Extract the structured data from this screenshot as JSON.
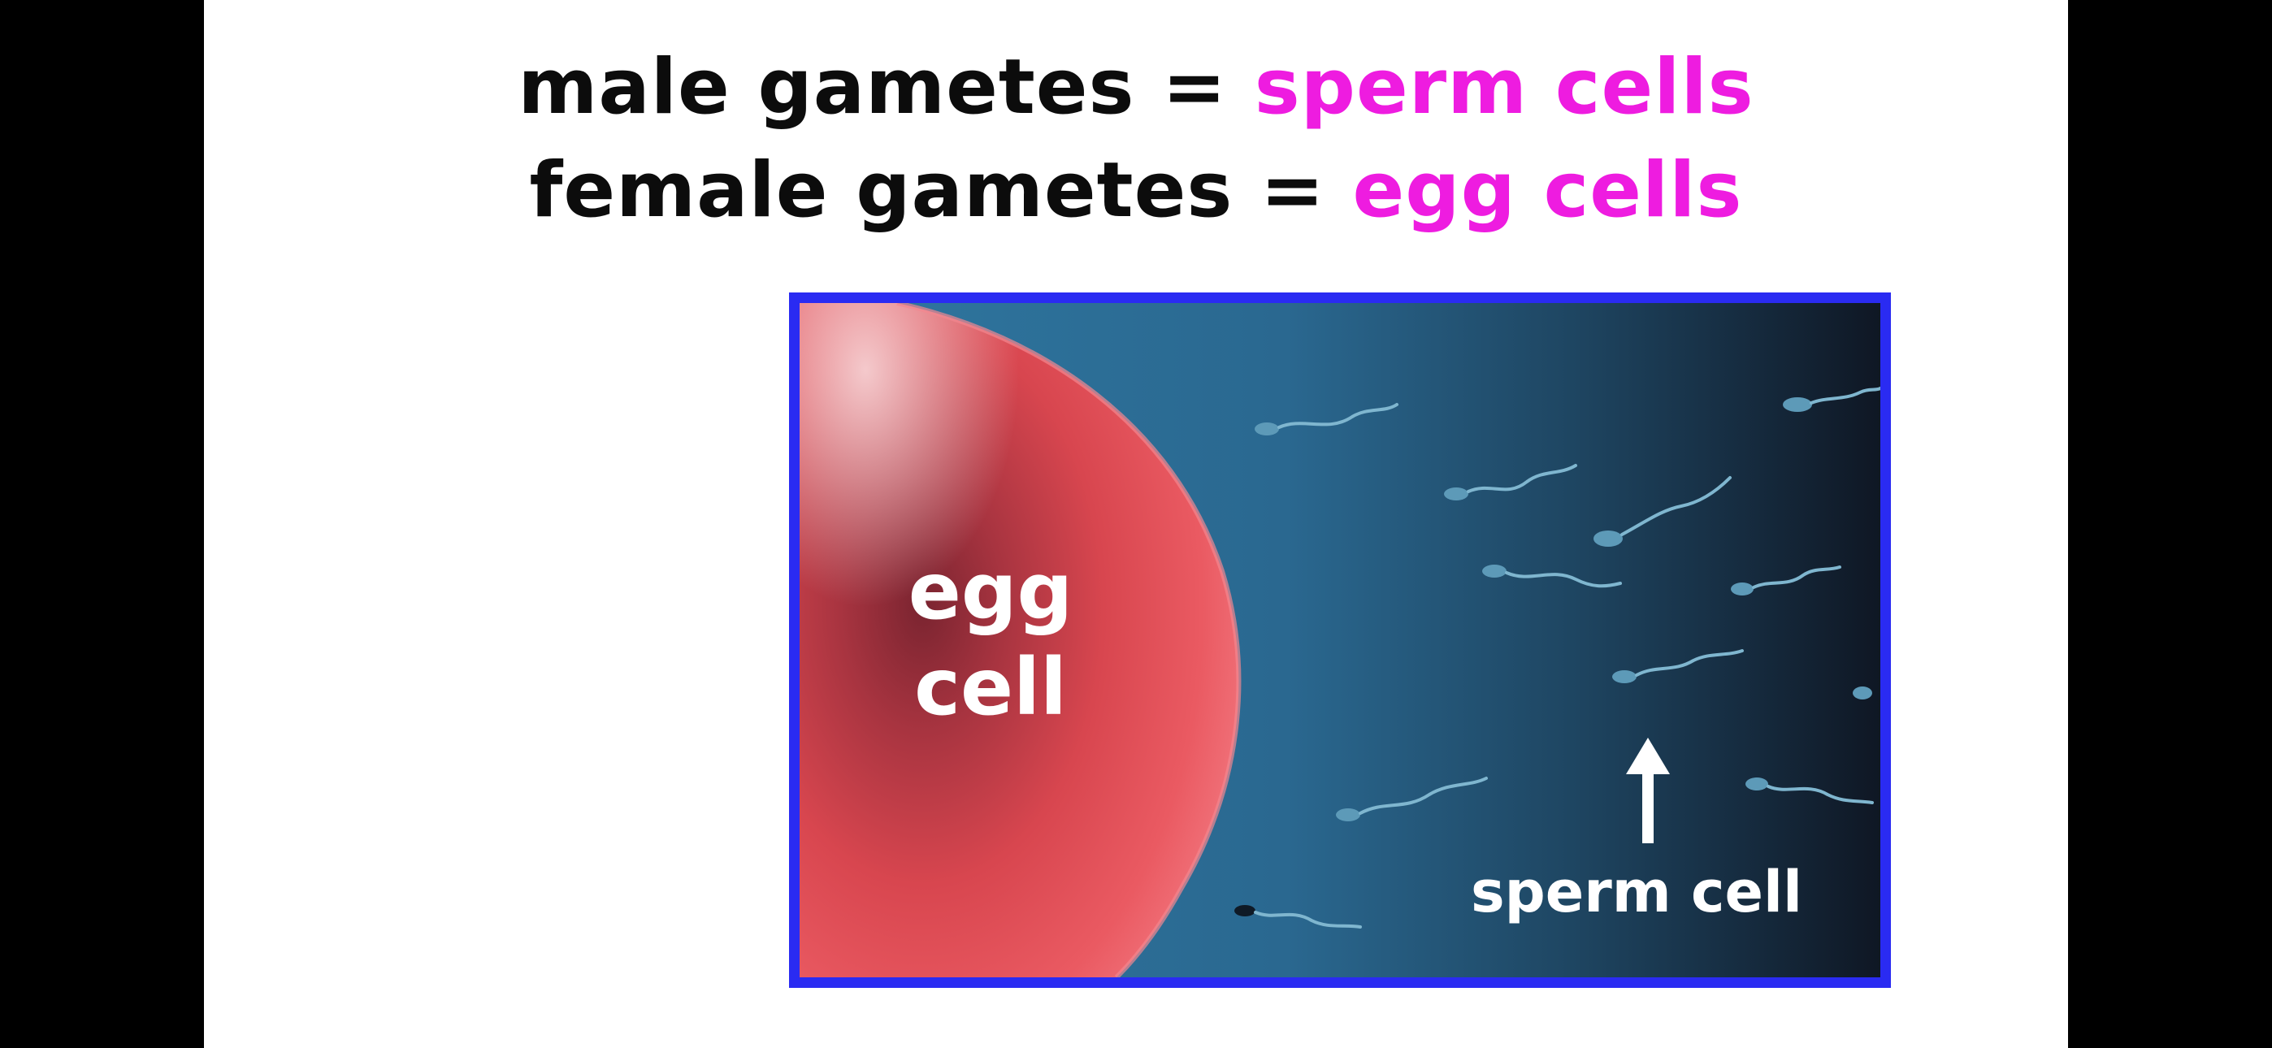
{
  "heading": {
    "line1": {
      "prefix": "male gametes = ",
      "highlight": "sperm cells"
    },
    "line2": {
      "prefix": "female gametes = ",
      "highlight": "egg cells"
    }
  },
  "photo": {
    "egg_label_line1": "egg",
    "egg_label_line2": "cell",
    "sperm_label": "sperm cell",
    "arrow_icon": "up-arrow-icon"
  },
  "colors": {
    "highlight": "#ee1ce0",
    "frame_border": "#2a2bf2",
    "egg": "#d8454f",
    "water_light": "#2b6890",
    "water_dark": "#101826"
  }
}
